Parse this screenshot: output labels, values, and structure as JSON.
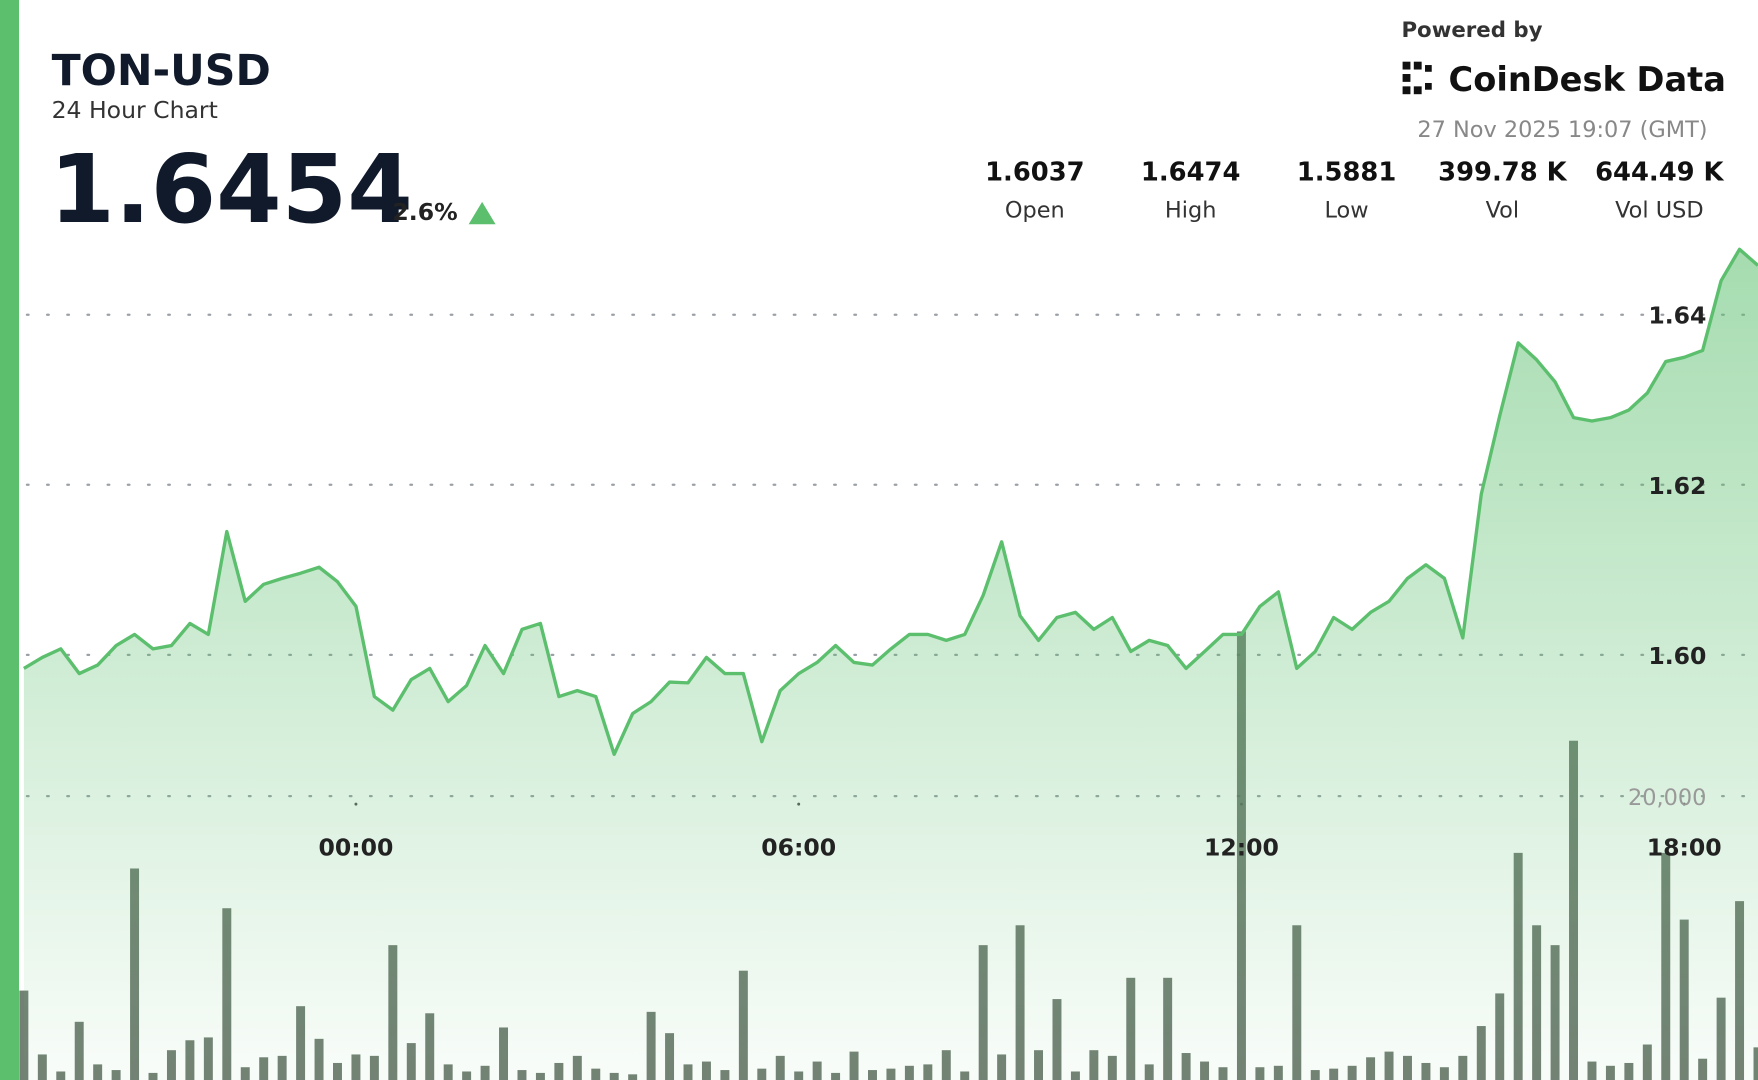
{
  "header": {
    "symbol": "TON-USD",
    "subtitle": "24 Hour Chart",
    "price": "1.6454",
    "change": "2.6%",
    "powered_by": "Powered by",
    "brand": "CoinDesk Data",
    "timestamp": "27 Nov 2025 19:07 (GMT)",
    "stats": [
      {
        "value": "1.6037",
        "label": "Open"
      },
      {
        "value": "1.6474",
        "label": "High"
      },
      {
        "value": "1.5881",
        "label": "Low"
      },
      {
        "value": "399.78 K",
        "label": "Vol"
      },
      {
        "value": "644.49 K",
        "label": "Vol USD"
      }
    ]
  },
  "chart_data": {
    "type": "line",
    "x": [
      -4.5,
      -4.25,
      -4,
      -3.75,
      -3.5,
      -3.25,
      -3,
      -2.75,
      -2.5,
      -2.25,
      -2,
      -1.75,
      -1.5,
      -1.25,
      -1,
      -0.75,
      -0.5,
      -0.25,
      0,
      0.25,
      0.5,
      0.75,
      1,
      1.25,
      1.5,
      1.75,
      2,
      2.25,
      2.5,
      2.75,
      3,
      3.25,
      3.5,
      3.75,
      4,
      4.25,
      4.5,
      4.75,
      5,
      5.25,
      5.5,
      5.75,
      6,
      6.25,
      6.5,
      6.75,
      7,
      7.25,
      7.5,
      7.75,
      8,
      8.25,
      8.5,
      8.75,
      9,
      9.25,
      9.5,
      9.75,
      10,
      10.25,
      10.5,
      10.75,
      11,
      11.25,
      11.5,
      11.75,
      12,
      12.25,
      12.5,
      12.75,
      13,
      13.25,
      13.5,
      13.75,
      14,
      14.25,
      14.5,
      14.75,
      15,
      15.25,
      15.5,
      15.75,
      16,
      16.25,
      16.5,
      16.75,
      17,
      17.25,
      17.5,
      17.75,
      18,
      18.25,
      18.5,
      18.75,
      19
    ],
    "series": [
      {
        "color": "#5cbf6e",
        "values": [
          1.5984,
          1.5997,
          1.6007,
          1.5978,
          1.5988,
          1.6011,
          1.6024,
          1.6007,
          1.6011,
          1.6037,
          1.6024,
          1.6145,
          1.6063,
          1.6083,
          1.609,
          1.6096,
          1.6103,
          1.6086,
          1.6057,
          1.5951,
          1.5935,
          1.5971,
          1.5984,
          1.5945,
          1.5964,
          1.6011,
          1.5978,
          1.603,
          1.6037,
          1.5951,
          1.5958,
          1.5951,
          1.5883,
          1.5931,
          1.5945,
          1.5968,
          1.5967,
          1.5997,
          1.5978,
          1.5978,
          1.5898,
          1.5958,
          1.5978,
          1.5991,
          1.6011,
          1.5991,
          1.5988,
          1.6007,
          1.6024,
          1.6024,
          1.6017,
          1.6024,
          1.607,
          1.6133,
          1.6046,
          1.6017,
          1.6044,
          1.605,
          1.603,
          1.6044,
          1.6004,
          1.6017,
          1.6011,
          1.5984,
          1.6004,
          1.6024,
          1.6024,
          1.6057,
          1.6074,
          1.5984,
          1.6004,
          1.6044,
          1.603,
          1.605,
          1.6063,
          1.609,
          1.6106,
          1.609,
          1.602,
          1.6189,
          1.6281,
          1.6367,
          1.6347,
          1.6321,
          1.6279,
          1.6275,
          1.6279,
          1.6288,
          1.6308,
          1.6345,
          1.635,
          1.6358,
          1.644,
          1.6477,
          1.6458
        ]
      },
      {
        "type": "bar",
        "axis": "y2",
        "color": "#5b6a5c",
        "values": [
          6300,
          1800,
          600,
          4100,
          1100,
          700,
          14900,
          500,
          2100,
          2800,
          3000,
          12100,
          900,
          1600,
          1700,
          5200,
          2900,
          1200,
          1800,
          1700,
          9500,
          2600,
          4700,
          1100,
          600,
          1000,
          3700,
          700,
          500,
          1200,
          1700,
          800,
          500,
          400,
          4800,
          3300,
          1100,
          1300,
          700,
          7700,
          800,
          1700,
          600,
          1300,
          500,
          2000,
          700,
          800,
          1000,
          1100,
          2100,
          600,
          9500,
          1800,
          10900,
          2100,
          5700,
          600,
          2100,
          1700,
          7200,
          1100,
          7200,
          1900,
          1300,
          900,
          31600,
          900,
          1000,
          10900,
          700,
          800,
          1000,
          1600,
          2000,
          1700,
          1200,
          900,
          1700,
          3800,
          6100,
          16000,
          10900,
          9500,
          23900,
          1300,
          1000,
          1200,
          2500,
          16000,
          11300,
          1500,
          5800,
          12600,
          2300
        ]
      }
    ],
    "xlim": [
      -4.55,
      19
    ],
    "xticks": [
      {
        "value": 0,
        "label": "00:00"
      },
      {
        "value": 6,
        "label": "06:00"
      },
      {
        "value": 12,
        "label": "12:00"
      },
      {
        "value": 18,
        "label": "18:00"
      }
    ],
    "ylim": [
      1.55,
      1.648
    ],
    "yticks": [
      {
        "value": 1.6,
        "label": "1.60"
      },
      1.62,
      1.64
    ],
    "y2lim": [
      0,
      58700
    ],
    "y2ticks": [
      {
        "value": 20000,
        "label": "20,000"
      }
    ],
    "grid": true
  }
}
